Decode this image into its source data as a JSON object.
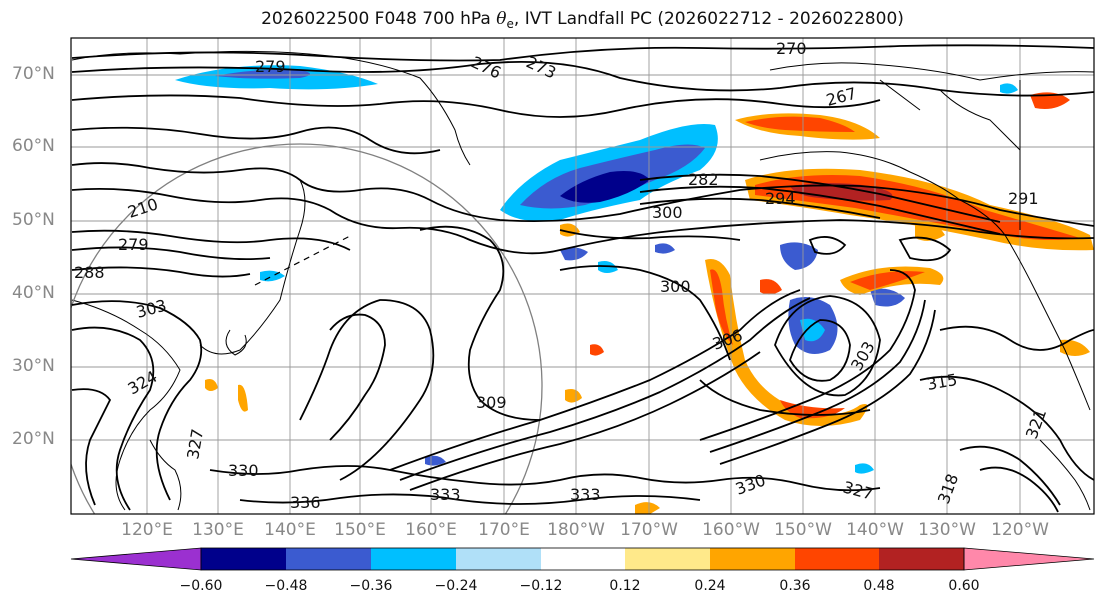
{
  "title": {
    "prefix": "2026022500 F048 700 hPa ",
    "theta": "θ",
    "theta_sub": "e",
    "suffix": ", IVT Landfall PC (2026022712 - 2026022800)"
  },
  "axes": {
    "lat_labels": [
      "70°N",
      "60°N",
      "50°N",
      "40°N",
      "30°N",
      "20°N"
    ],
    "lon_labels": [
      "120°E",
      "130°E",
      "140°E",
      "150°E",
      "160°E",
      "170°E",
      "180°W",
      "170°W",
      "160°W",
      "150°W",
      "140°W",
      "130°W",
      "120°W"
    ]
  },
  "colorbar": {
    "ticks": [
      "−0.60",
      "−0.48",
      "−0.36",
      "−0.24",
      "−0.12",
      "0.12",
      "0.24",
      "0.36",
      "0.48",
      "0.60"
    ],
    "colors": [
      "#9b30d0",
      "#00008b",
      "#3b5bd0",
      "#00bfff",
      "#b0e0f8",
      "#ffffff",
      "#ffe98a",
      "#ffa500",
      "#ff4500",
      "#b22222",
      "#ff88aa"
    ]
  },
  "contour_labels": [
    "270",
    "273",
    "276",
    "279",
    "210",
    "279",
    "288",
    "303",
    "324",
    "327",
    "330",
    "333",
    "336",
    "282",
    "300",
    "294",
    "291",
    "267",
    "300",
    "306",
    "309",
    "303",
    "315",
    "321",
    "318",
    "330",
    "327",
    "333"
  ],
  "palette": {
    "frame": "#000000",
    "grid": "#999999",
    "axis_text": "#888888"
  }
}
